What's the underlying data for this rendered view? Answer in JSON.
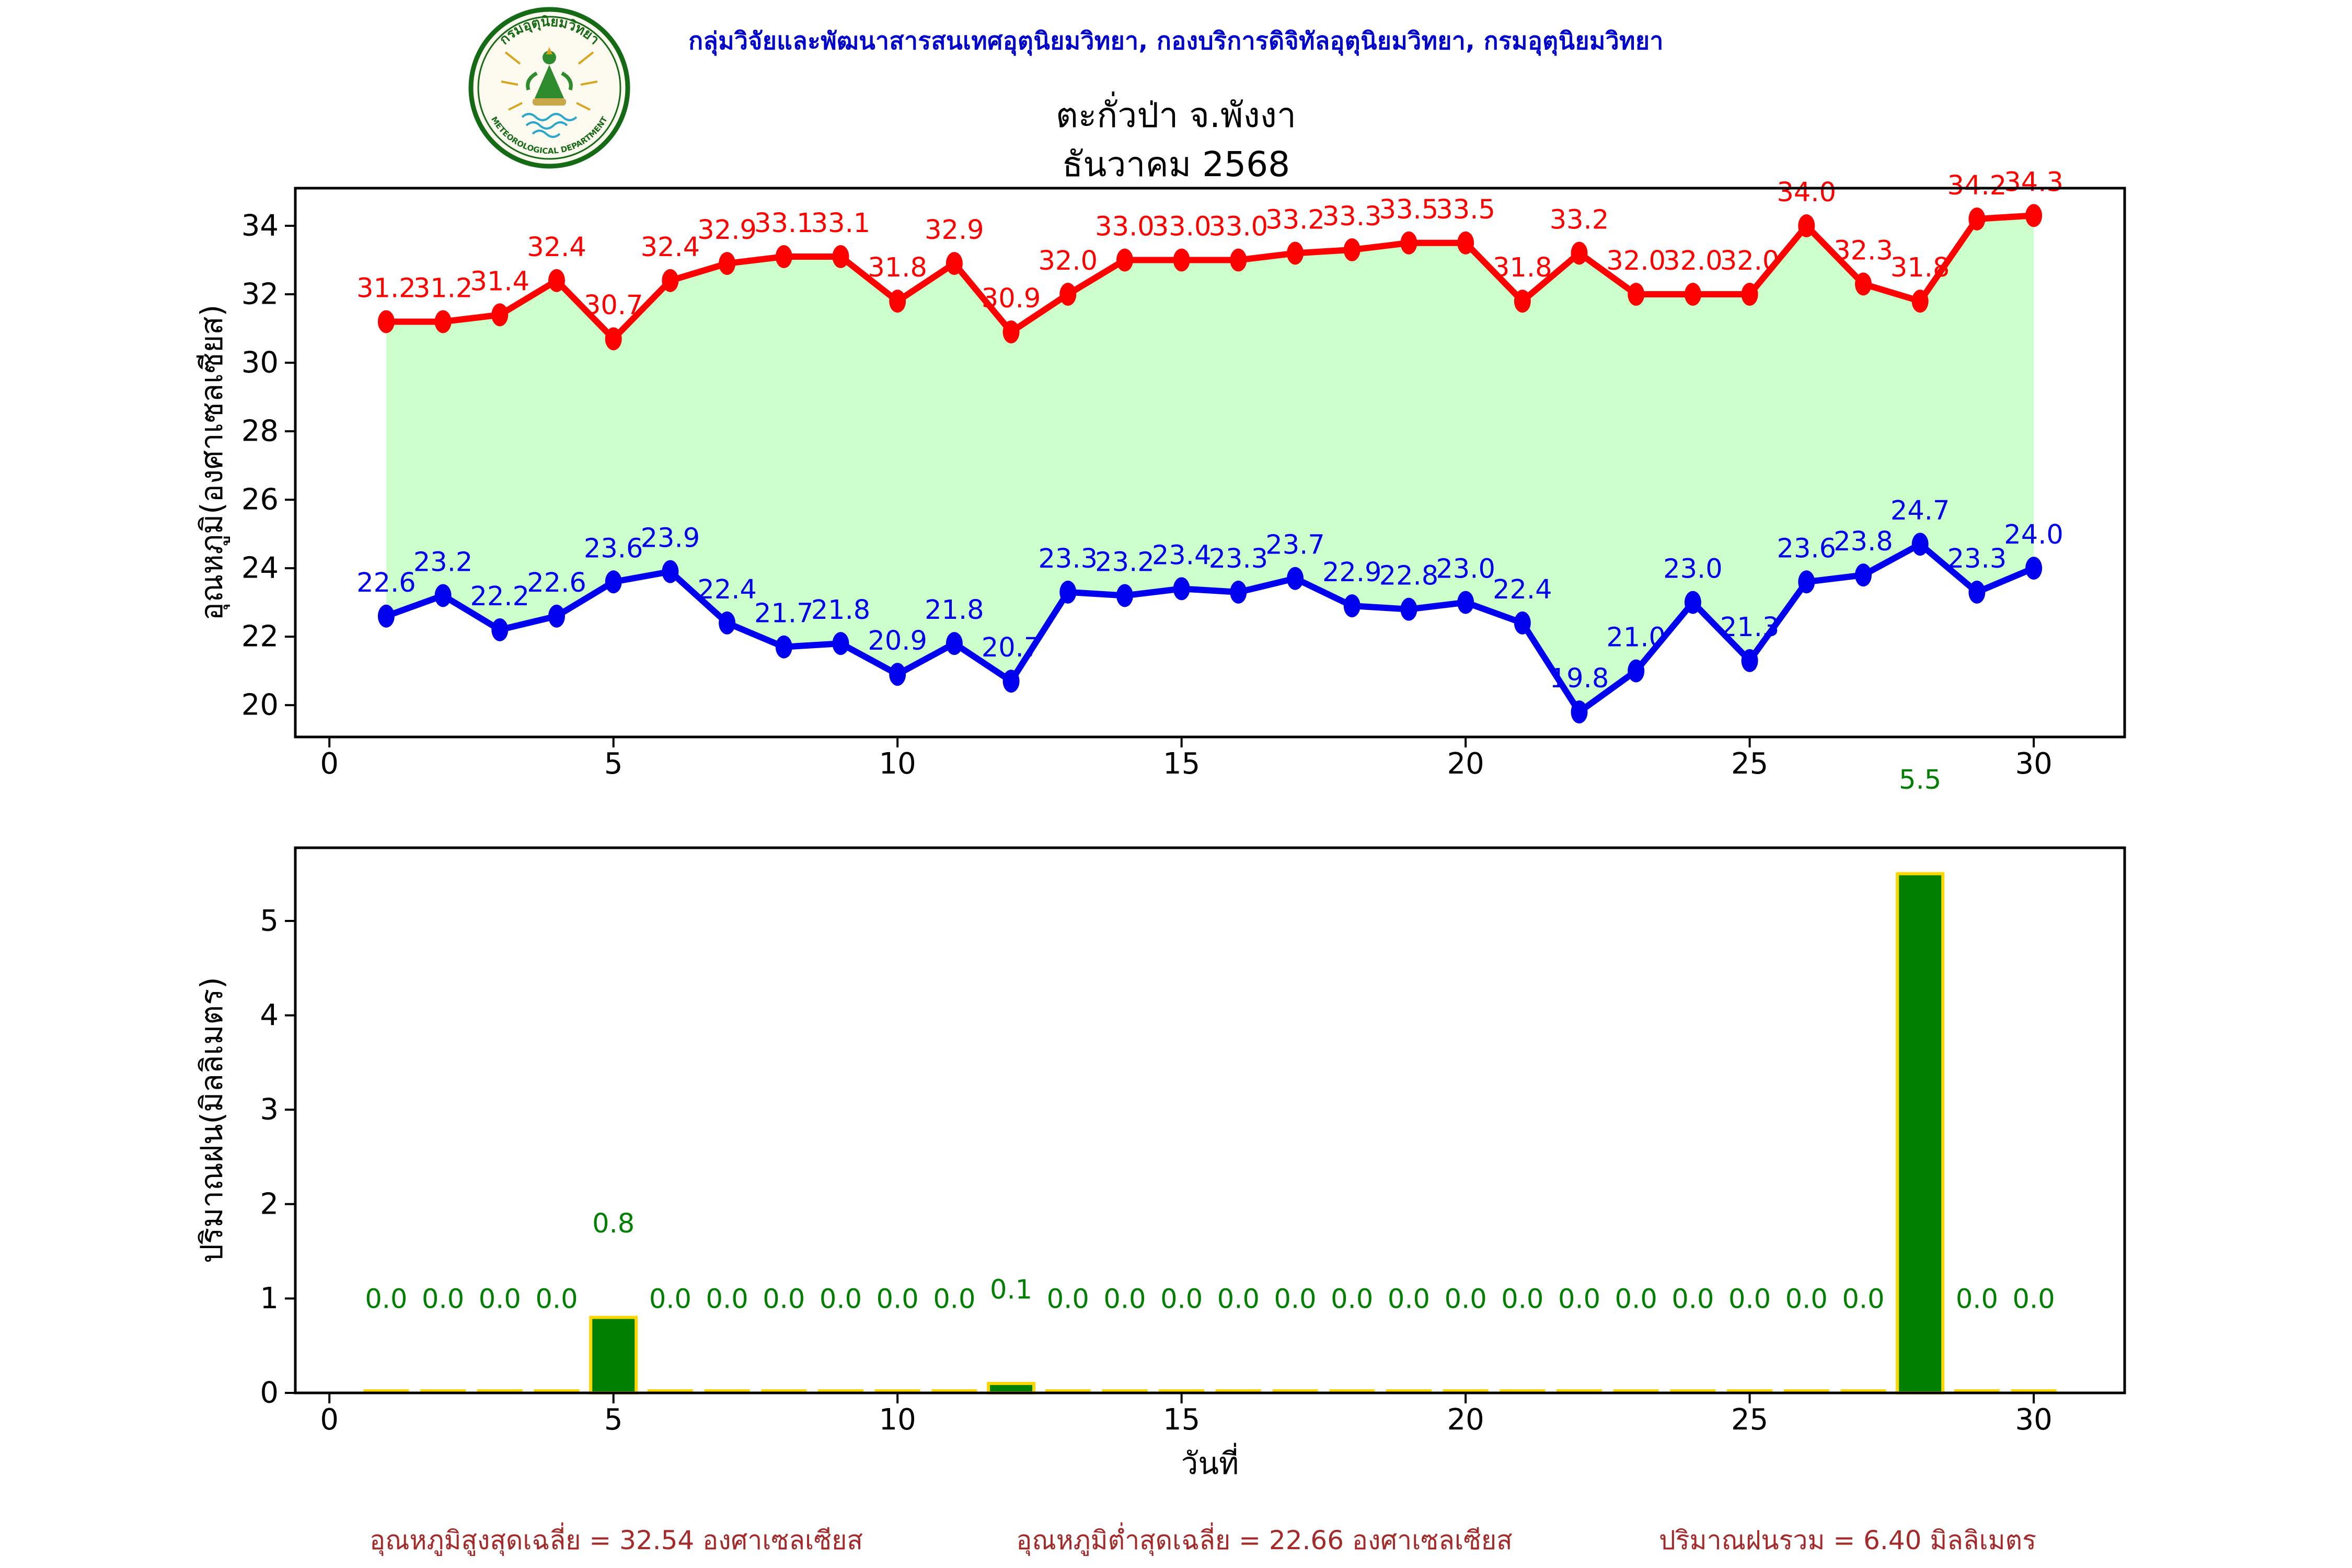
{
  "header": {
    "department_line": "กลุ่มวิจัยและพัฒนาสารสนเทศอุตุนิยมวิทยา, กองบริการดิจิทัลอุตุนิยมวิทยา, กรมอุตุนิยมวิทยา",
    "title": "ตะกั่วป่า จ.พังงา",
    "subtitle": "ธันวาคม 2568"
  },
  "logo": {
    "top_text": "กรมอุตุนิยมวิทยา",
    "bottom_text": "METEOROLOGICAL DEPARTMENT"
  },
  "chart_data": [
    {
      "type": "line",
      "ylabel": "อุณหภูมิ(องศาเซลเซียส)",
      "x": [
        1,
        2,
        3,
        4,
        5,
        6,
        7,
        8,
        9,
        10,
        11,
        12,
        13,
        14,
        15,
        16,
        17,
        18,
        19,
        20,
        21,
        22,
        23,
        24,
        25,
        26,
        27,
        28,
        29,
        30
      ],
      "xticks": [
        0,
        5,
        10,
        15,
        20,
        25,
        30
      ],
      "yticks": [
        20,
        22,
        24,
        26,
        28,
        30,
        32,
        34
      ],
      "xlim": [
        -0.6,
        31.6
      ],
      "ylim": [
        19.07,
        35.1
      ],
      "grid": false,
      "legend": "none",
      "fill_between_color": "#ccffcc",
      "series": [
        {
          "name": "max-temp",
          "color": "#ff0000",
          "values": [
            31.2,
            31.2,
            31.4,
            32.4,
            30.7,
            32.4,
            32.9,
            33.1,
            33.1,
            31.8,
            32.9,
            30.9,
            32.0,
            33.0,
            33.0,
            33.0,
            33.2,
            33.3,
            33.5,
            33.5,
            31.8,
            33.2,
            32.0,
            32.0,
            32.0,
            34.0,
            32.3,
            31.8,
            34.2,
            34.3
          ]
        },
        {
          "name": "min-temp",
          "color": "#0000ee",
          "values": [
            22.6,
            23.2,
            22.2,
            22.6,
            23.6,
            23.9,
            22.4,
            21.7,
            21.8,
            20.9,
            21.8,
            20.7,
            23.3,
            23.2,
            23.4,
            23.3,
            23.7,
            22.9,
            22.8,
            23.0,
            22.4,
            19.8,
            21.0,
            23.0,
            21.3,
            23.6,
            23.8,
            24.7,
            23.3,
            24.0
          ]
        }
      ]
    },
    {
      "type": "bar",
      "xlabel": "วันที่",
      "ylabel": "ปริมาณฝน(มิลลิเมตร)",
      "x": [
        1,
        2,
        3,
        4,
        5,
        6,
        7,
        8,
        9,
        10,
        11,
        12,
        13,
        14,
        15,
        16,
        17,
        18,
        19,
        20,
        21,
        22,
        23,
        24,
        25,
        26,
        27,
        28,
        29,
        30
      ],
      "xticks": [
        0,
        5,
        10,
        15,
        20,
        25,
        30
      ],
      "yticks": [
        0,
        1,
        2,
        3,
        4,
        5
      ],
      "xlim": [
        -0.6,
        31.6
      ],
      "ylim": [
        0,
        5.775
      ],
      "grid": false,
      "bar_color": "#008000",
      "bar_edge_color": "#ffd700",
      "label_color": "#008000",
      "values": [
        0.0,
        0.0,
        0.0,
        0.0,
        0.8,
        0.0,
        0.0,
        0.0,
        0.0,
        0.0,
        0.0,
        0.1,
        0.0,
        0.0,
        0.0,
        0.0,
        0.0,
        0.0,
        0.0,
        0.0,
        0.0,
        0.0,
        0.0,
        0.0,
        0.0,
        0.0,
        0.0,
        5.5,
        0.0,
        0.0
      ]
    }
  ],
  "summary": {
    "max_avg": "อุณหภูมิสูงสุดเฉลี่ย = 32.54 องศาเซลเซียส",
    "min_avg": "อุณหภูมิต่ำสุดเฉลี่ย = 22.66 องศาเซลเซียส",
    "rain_total": "ปริมาณฝนรวม = 6.40 มิลลิเมตร"
  }
}
